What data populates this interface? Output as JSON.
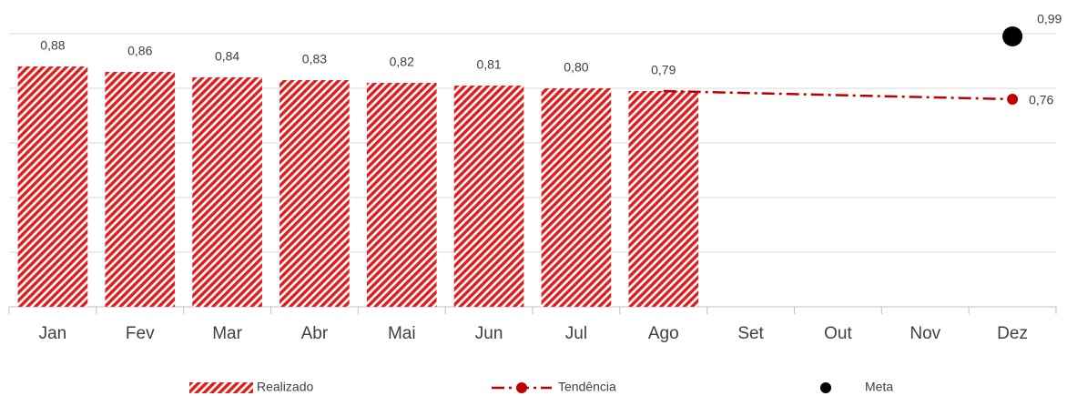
{
  "chart_data": {
    "type": "bar",
    "categories": [
      "Jan",
      "Fev",
      "Mar",
      "Abr",
      "Mai",
      "Jun",
      "Jul",
      "Ago",
      "Set",
      "Out",
      "Nov",
      "Dez"
    ],
    "series": [
      {
        "name": "Realizado",
        "type": "bar",
        "color": "#e31b1b",
        "values": [
          0.88,
          0.86,
          0.84,
          0.83,
          0.82,
          0.81,
          0.8,
          0.79,
          null,
          null,
          null,
          null
        ],
        "value_labels": [
          "0,88",
          "0,86",
          "0,84",
          "0,83",
          "0,82",
          "0,81",
          "0,80",
          "0,79",
          null,
          null,
          null,
          null
        ]
      },
      {
        "name": "Tendência",
        "type": "line",
        "color": "#c00000",
        "values": [
          null,
          null,
          null,
          null,
          null,
          null,
          null,
          0.79,
          0.7825,
          0.775,
          0.7675,
          0.76
        ],
        "value_labels": [
          null,
          null,
          null,
          null,
          null,
          null,
          null,
          null,
          null,
          null,
          null,
          "0,76"
        ]
      },
      {
        "name": "Meta",
        "type": "scatter",
        "color": "#000000",
        "values": [
          null,
          null,
          null,
          null,
          null,
          null,
          null,
          null,
          null,
          null,
          null,
          0.99
        ],
        "value_labels": [
          null,
          null,
          null,
          null,
          null,
          null,
          null,
          null,
          null,
          null,
          null,
          "0,99"
        ]
      }
    ],
    "ylim": [
      0,
      1
    ],
    "yticks": [
      0,
      0.2,
      0.4,
      0.6,
      0.8,
      1
    ],
    "grid": true,
    "legend": "bottom"
  }
}
